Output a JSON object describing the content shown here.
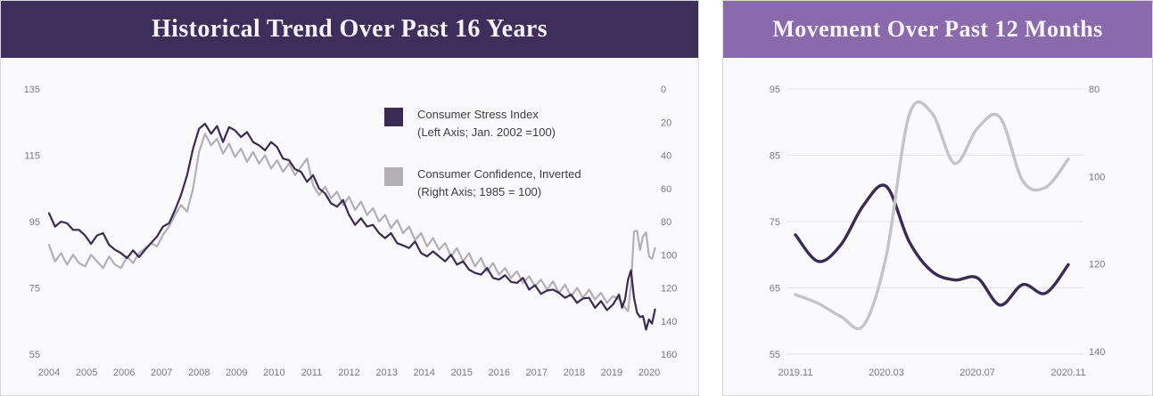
{
  "chart_data": [
    {
      "id": "historical-trend",
      "type": "line",
      "title": "Historical Trend Over Past 16 Years",
      "header_bg": "#3e2e5c",
      "plot_bg": "#faf9fb",
      "grid": false,
      "x_axis": {
        "tick_labels": [
          "2004",
          "2005",
          "2006",
          "2007",
          "2008",
          "2009",
          "2010",
          "2011",
          "2012",
          "2013",
          "2014",
          "2015",
          "2016",
          "2017",
          "2018",
          "2019",
          "2020"
        ]
      },
      "y_axis_left": {
        "ticks": [
          "135",
          "115",
          "95",
          "75",
          "55"
        ],
        "range": [
          55,
          135
        ]
      },
      "y_axis_right": {
        "ticks": [
          "0",
          "20",
          "40",
          "60",
          "80",
          "100",
          "120",
          "140",
          "160"
        ],
        "range": [
          0,
          160
        ]
      },
      "legend": [
        {
          "label": "Consumer Stress Index",
          "sublabel": "(Left Axis; Jan. 2002 =100)",
          "color": "#3b2b54"
        },
        {
          "label": "Consumer Confidence, Inverted",
          "sublabel": "(Right Axis; 1985 = 100)",
          "color": "#b2b0b4"
        }
      ],
      "series": [
        {
          "name": "Consumer Confidence, Inverted",
          "axis": "right",
          "color": "#b2b0b4",
          "style": "linear",
          "width": 2.2,
          "segments": [
            {
              "start": 2004,
              "step": 0.16667,
              "values": [
                94,
                104,
                99,
                106,
                100,
                105,
                107,
                100,
                104,
                108,
                101,
                106,
                108,
                101,
                105,
                99,
                96,
                93,
                95,
                88,
                83,
                76,
                70,
                74,
                60,
                38,
                27,
                34,
                30,
                39,
                33,
                41,
                36,
                44,
                38,
                45,
                40,
                48,
                43,
                50,
                45,
                52,
                47,
                42,
                58,
                64,
                59,
                66,
                62,
                70,
                65,
                73,
                68,
                76,
                72,
                80,
                76,
                84,
                79,
                87,
                83,
                91,
                87,
                95,
                90,
                97,
                93,
                101,
                96,
                104,
                99,
                107,
                102,
                110,
                105,
                112,
                108,
                114,
                110,
                117,
                113,
                119,
                115,
                121,
                116,
                123,
                118,
                125,
                120,
                126,
                121,
                127,
                123,
                129,
                125
              ]
            },
            {
              "start": 2019.8333,
              "step": 0.08333,
              "values": [
                127,
                129,
                132,
                134,
                118,
                86,
                85.5,
                97,
                89,
                86.5,
                101,
                102.5,
                96
              ]
            }
          ]
        },
        {
          "name": "Consumer Stress Index",
          "axis": "left",
          "color": "#3b2b54",
          "style": "linear",
          "width": 2.2,
          "segments": [
            {
              "start": 2004,
              "step": 0.16667,
              "values": [
                97.5,
                93.5,
                95,
                94.5,
                92.5,
                92.5,
                90.8,
                88.3,
                90.8,
                91.5,
                88,
                86.5,
                85.5,
                84,
                86.3,
                84.3,
                86.5,
                88.5,
                90.5,
                93.5,
                94.5,
                98.5,
                103,
                109,
                117,
                123,
                124.5,
                121.5,
                123.8,
                119,
                123.5,
                122.5,
                120.5,
                122,
                119,
                118,
                116.5,
                119,
                117.5,
                114,
                113.5,
                110.8,
                110,
                107,
                109,
                105,
                103.5,
                100.5,
                99.5,
                101.5,
                97,
                94,
                96,
                93.5,
                94,
                91.5,
                90,
                91.5,
                88.5,
                87.8,
                87,
                89,
                85.5,
                84.5,
                86,
                84.5,
                83,
                85,
                82,
                83,
                80.5,
                79.5,
                79,
                81,
                78,
                77.5,
                78.8,
                76.8,
                76.5,
                78,
                74.5,
                75.8,
                73.2,
                74.2,
                74.5,
                73.5,
                72,
                73,
                70.5,
                71.8,
                72,
                69,
                71,
                68.3,
                70
              ]
            },
            {
              "start": 2019.8333,
              "step": 0.08333,
              "values": [
                73,
                69,
                71.5,
                77.5,
                80.3,
                72,
                67.5,
                66.2,
                66.5,
                62.4,
                65.5,
                64.2,
                68.5
              ]
            }
          ]
        }
      ]
    },
    {
      "id": "movement-past-12-months",
      "type": "line",
      "title": "Movement Over Past 12 Months",
      "header_bg": "#8a6aac",
      "plot_bg": "#faf9fb",
      "grid": true,
      "categories": [
        "2019.11",
        "2019.12",
        "2020.01",
        "2020.02",
        "2020.03",
        "2020.04",
        "2020.05",
        "2020.06",
        "2020.07",
        "2020.08",
        "2020.09",
        "2020.10",
        "2020.11"
      ],
      "x_axis": {
        "tick_labels": [
          "2019.11",
          "2020.03",
          "2020.07",
          "2020.11"
        ],
        "tick_index": [
          0,
          4,
          8,
          12
        ]
      },
      "y_axis_left": {
        "ticks": [
          "95",
          "85",
          "75",
          "65",
          "55"
        ],
        "range": [
          55,
          95
        ]
      },
      "y_axis_right": {
        "ticks": [
          "80",
          "100",
          "120",
          "140"
        ],
        "range": [
          80,
          140
        ]
      },
      "series": [
        {
          "name": "Consumer Stress Index",
          "axis": "left",
          "color": "#3b2b54",
          "style": "smooth",
          "width": 3.4,
          "values": [
            73,
            69,
            71.5,
            77.5,
            80.3,
            72,
            67.5,
            66.2,
            66.5,
            62.4,
            65.5,
            64.2,
            68.5
          ]
        },
        {
          "name": "Consumer Confidence, Inverted",
          "axis": "right",
          "color": "#c4c3c6",
          "style": "smooth",
          "width": 3.4,
          "values": [
            127,
            129,
            132,
            134,
            118,
            86,
            85.5,
            97,
            89,
            86.5,
            101,
            102.5,
            96
          ]
        }
      ]
    }
  ]
}
